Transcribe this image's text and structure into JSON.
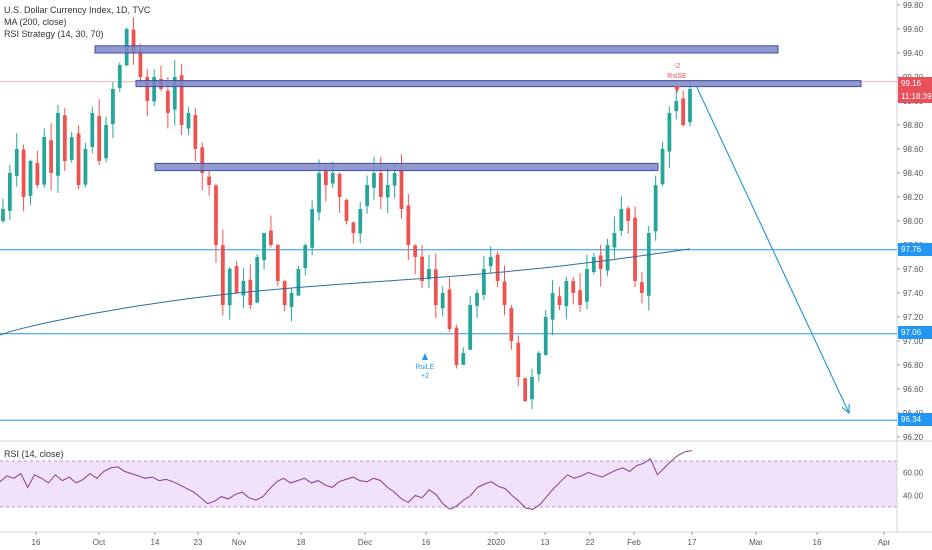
{
  "legend": {
    "title": "U.S. Dollar Currency Index, 1D, TVC",
    "ma": "MA (200, close)",
    "strategy": "RSI Strategy (14, 30, 70)"
  },
  "rsi_legend": "RSI (14, close)",
  "price_tags": [
    {
      "label": "99.16",
      "color": "#e8505b"
    },
    {
      "label": "11:18:39",
      "color": "#e8505b"
    },
    {
      "label": "97.76",
      "color": "#2196f3"
    },
    {
      "label": "97.06",
      "color": "#2196f3"
    },
    {
      "label": "96.34",
      "color": "#2196f3"
    }
  ],
  "signals": {
    "short": {
      "count": "-2",
      "label": "RsiSE"
    },
    "long": {
      "label": "RsiLE",
      "count": "+2"
    }
  },
  "colors": {
    "up": "#26a69a",
    "down": "#ef5350",
    "ma": "#2c6e9e",
    "zone_fill": "#7e88c8",
    "zone_stroke": "#3f4ea5",
    "hline": "#2196f3",
    "rsi_line": "#8b3a8b",
    "rsi_band": "#f1e2fb",
    "arrow": "#2d9bd3"
  },
  "chart_data": {
    "type": "candlestick",
    "title": "U.S. Dollar Currency Index, 1D, TVC",
    "price_axis": {
      "ticks": [
        "99.80",
        "99.60",
        "99.40",
        "99.20",
        "99.00",
        "98.80",
        "98.60",
        "98.40",
        "98.20",
        "98.00",
        "97.80",
        "97.60",
        "97.40",
        "97.20",
        "97.00",
        "96.80",
        "96.60",
        "96.40",
        "96.20"
      ],
      "range": [
        96.2,
        99.8
      ]
    },
    "time_axis": {
      "ticks": [
        "16",
        "Oct",
        "14",
        "23",
        "Nov",
        "18",
        "Dec",
        "16",
        "2020",
        "13",
        "22",
        "Feb",
        "17",
        "Mar",
        "16",
        "Apr"
      ]
    },
    "close_path": [
      98.1,
      98.4,
      98.6,
      98.2,
      98.5,
      98.3,
      98.7,
      98.4,
      98.9,
      98.5,
      98.7,
      98.3,
      98.6,
      98.9,
      98.5,
      98.8,
      99.1,
      99.3,
      99.6,
      99.4,
      99.2,
      99.0,
      99.2,
      99.1,
      98.9,
      99.2,
      98.8,
      98.9,
      98.6,
      98.4,
      98.3,
      97.8,
      97.3,
      97.6,
      97.4,
      97.5,
      97.3,
      97.7,
      97.9,
      97.8,
      97.5,
      97.3,
      97.4,
      97.6,
      97.8,
      98.1,
      98.4,
      98.3,
      98.4,
      98.2,
      98.0,
      97.9,
      98.1,
      98.3,
      98.4,
      98.2,
      98.3,
      98.4,
      98.1,
      97.8,
      97.7,
      97.5,
      97.6,
      97.3,
      97.4,
      97.1,
      96.8,
      96.9,
      97.3,
      97.4,
      97.6,
      97.7,
      97.5,
      97.3,
      97.0,
      96.7,
      96.5,
      96.7,
      96.9,
      97.2,
      97.4,
      97.3,
      97.5,
      97.4,
      97.3,
      97.6,
      97.7,
      97.6,
      97.8,
      97.9,
      98.1,
      98.0,
      97.5,
      97.4,
      97.9,
      98.3,
      98.6,
      98.9,
      99.0,
      98.8,
      99.1
    ],
    "ma200": {
      "name": "MA (200, close)",
      "start": 97.05,
      "end": 97.78
    },
    "resistance_zones": [
      {
        "from": 99.4,
        "to": 99.46
      },
      {
        "from": 99.12,
        "to": 99.17
      },
      {
        "from": 98.42,
        "to": 98.48
      }
    ],
    "horizontal_levels": [
      97.76,
      97.06,
      96.34
    ],
    "projection": {
      "from": 99.13,
      "to": 96.4
    },
    "rsi": {
      "name": "RSI (14, close)",
      "ticks": [
        "60.00",
        "40.00"
      ],
      "upper": 70,
      "lower": 30,
      "values": [
        52,
        57,
        55,
        59,
        47,
        58,
        55,
        51,
        58,
        53,
        56,
        51,
        54,
        59,
        55,
        61,
        64,
        65,
        61,
        59,
        57,
        55,
        56,
        53,
        54,
        52,
        49,
        46,
        43,
        38,
        33,
        35,
        39,
        37,
        41,
        43,
        38,
        36,
        39,
        46,
        52,
        55,
        51,
        53,
        55,
        51,
        53,
        49,
        47,
        52,
        54,
        56,
        53,
        52,
        55,
        53,
        47,
        43,
        37,
        34,
        40,
        38,
        45,
        41,
        33,
        28,
        31,
        36,
        40,
        47,
        50,
        52,
        48,
        46,
        40,
        35,
        29,
        28,
        32,
        39,
        46,
        52,
        58,
        55,
        57,
        60,
        58,
        56,
        59,
        62,
        64,
        61,
        66,
        68,
        72,
        58,
        64,
        70,
        75,
        78,
        79
      ]
    }
  }
}
